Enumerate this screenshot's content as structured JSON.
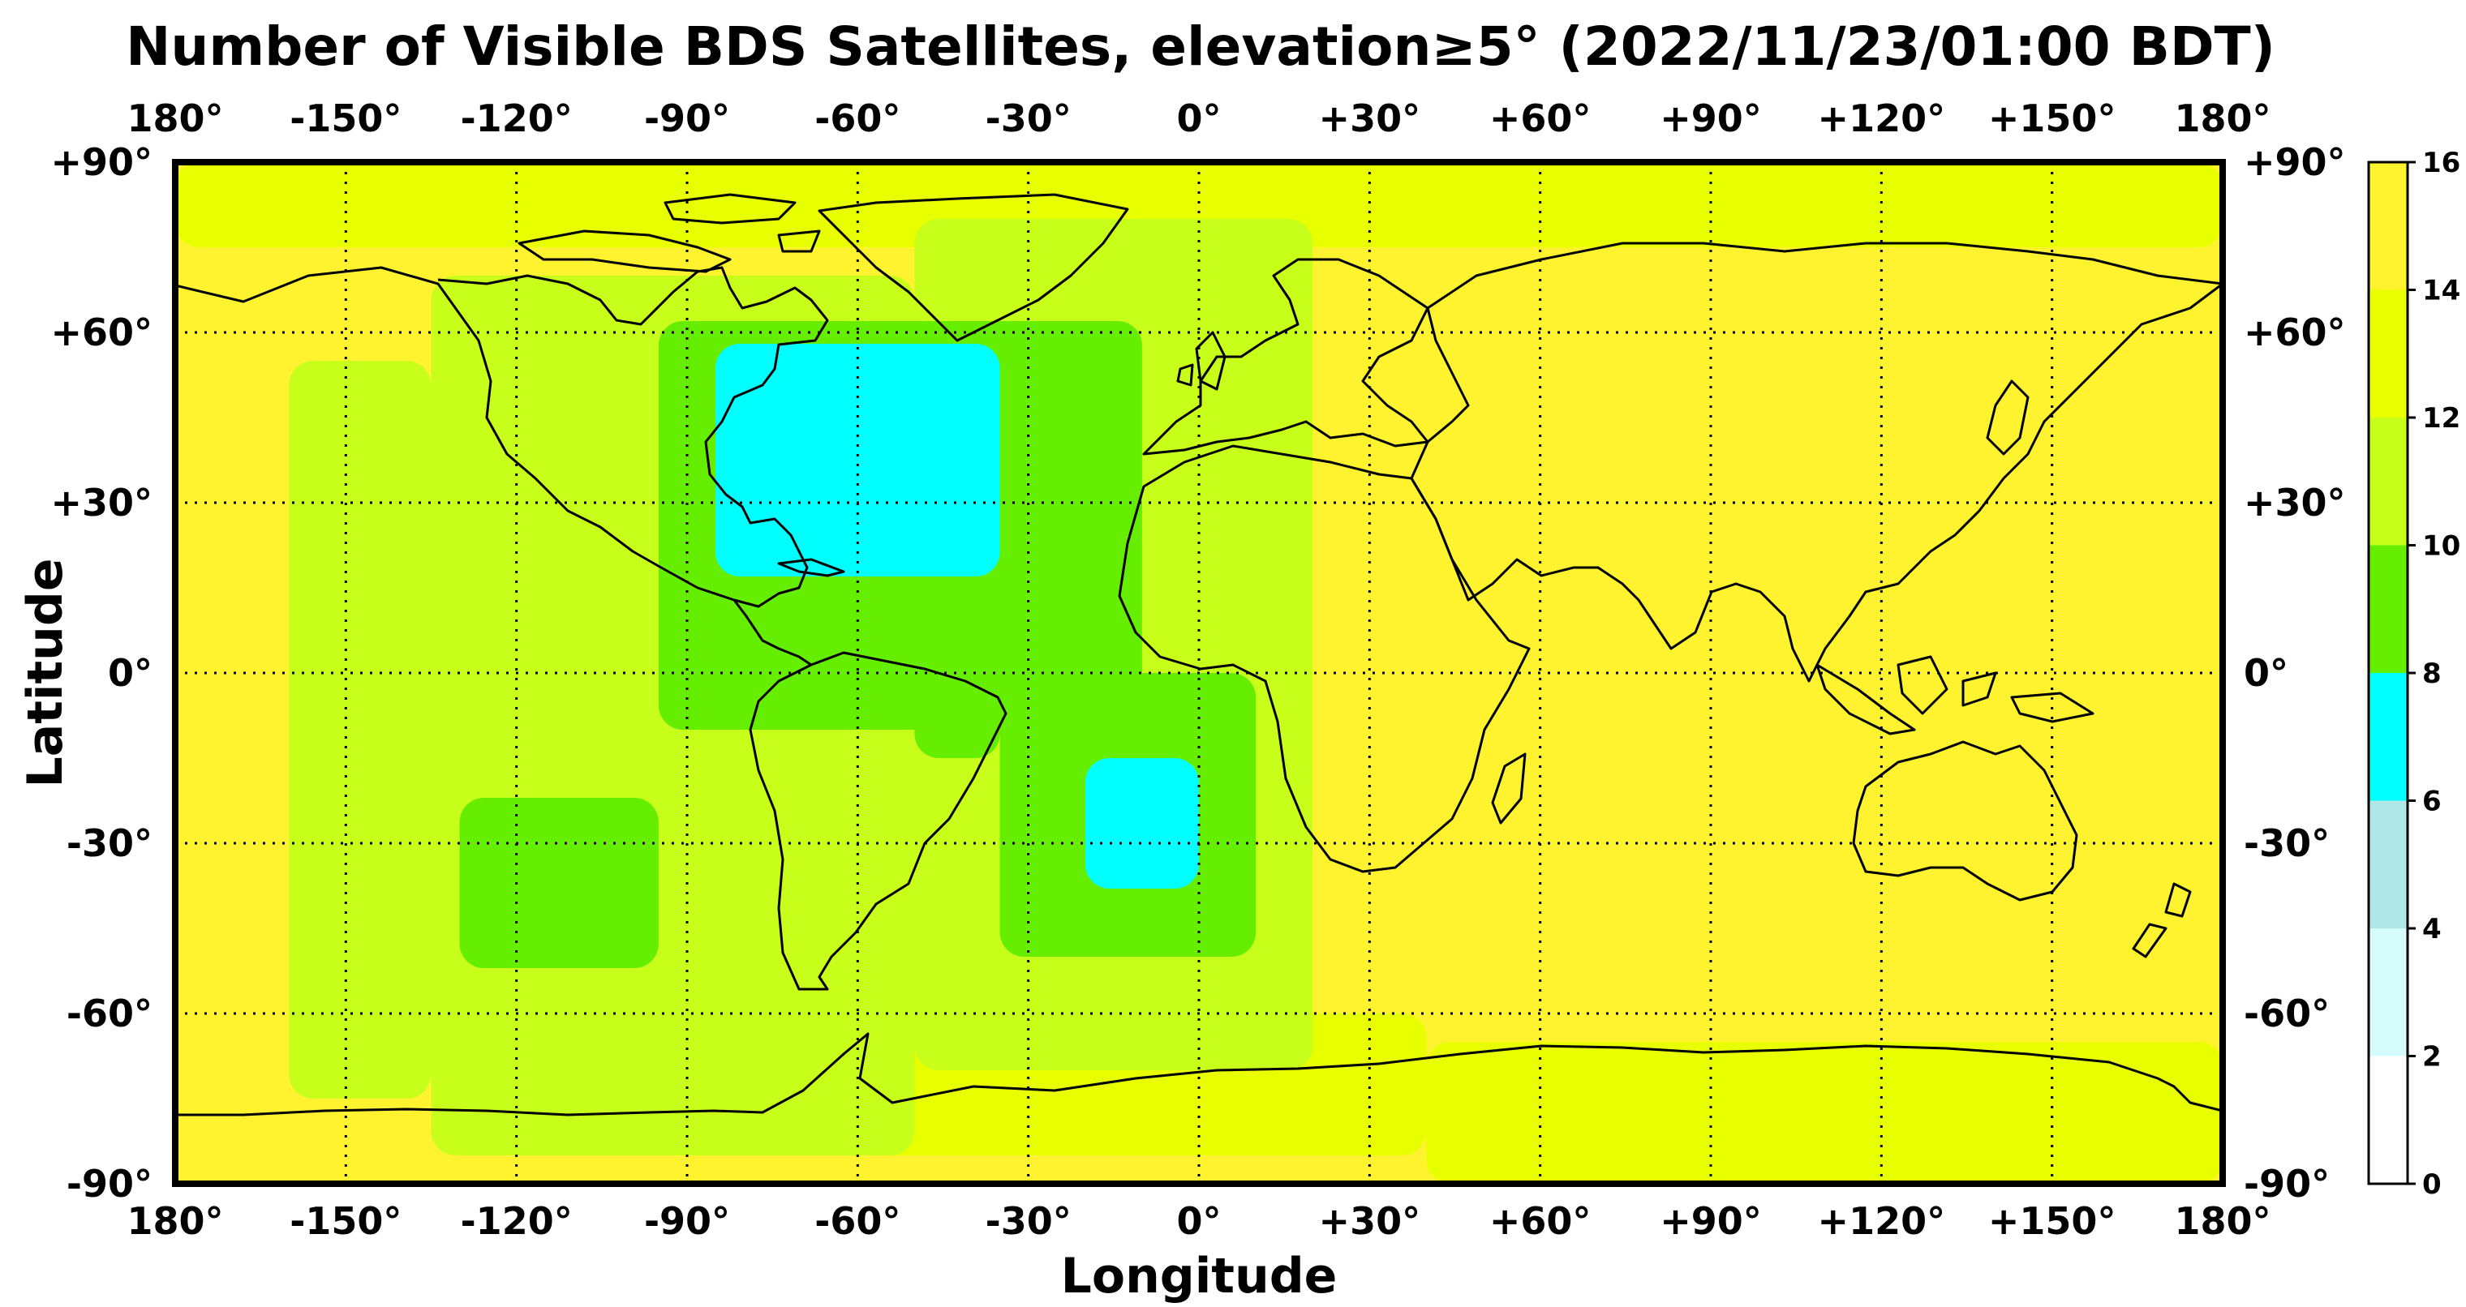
{
  "chart_data": {
    "type": "heatmap",
    "title": "Number of Visible BDS Satellites, elevation≥5° (2022/11/23/01:00 BDT)",
    "xlabel": "Longitude",
    "ylabel": "Latitude",
    "xlim": [
      -180,
      180
    ],
    "ylim": [
      -90,
      90
    ],
    "x_ticks": [
      -180,
      -150,
      -120,
      -90,
      -60,
      -30,
      0,
      30,
      60,
      90,
      120,
      150,
      180
    ],
    "x_tick_labels": [
      "180°",
      "-150°",
      "-120°",
      "-90°",
      "-60°",
      "-30°",
      "0°",
      "+30°",
      "+60°",
      "+90°",
      "+120°",
      "+150°",
      "180°"
    ],
    "y_ticks": [
      90,
      60,
      30,
      0,
      -30,
      -60,
      -90
    ],
    "y_tick_labels": [
      "+90°",
      "+60°",
      "+30°",
      "0°",
      "-30°",
      "-60°",
      "-90°"
    ],
    "grid": true,
    "colorbar": {
      "ticks": [
        0,
        2,
        4,
        6,
        8,
        10,
        12,
        14,
        16
      ],
      "tick_labels": [
        "0",
        "2",
        "4",
        "6",
        "8",
        "10",
        "12",
        "14",
        "16"
      ],
      "bins": [
        {
          "range": [
            0,
            2
          ],
          "color": "#ffffff"
        },
        {
          "range": [
            2,
            4
          ],
          "color": "#d6fcfc"
        },
        {
          "range": [
            4,
            6
          ],
          "color": "#afe6e6"
        },
        {
          "range": [
            6,
            8
          ],
          "color": "#00ffff"
        },
        {
          "range": [
            8,
            10
          ],
          "color": "#66ee00"
        },
        {
          "range": [
            10,
            12
          ],
          "color": "#c8ff1a"
        },
        {
          "range": [
            12,
            14
          ],
          "color": "#e8ff00"
        },
        {
          "range": [
            14,
            16
          ],
          "color": "#fff22e"
        }
      ]
    },
    "regions": [
      {
        "id": "high-latitudes-north",
        "lon": [
          -180,
          180
        ],
        "lat": [
          75,
          90
        ],
        "bin": [
          12,
          14
        ]
      },
      {
        "id": "east-pacific-band",
        "lon": [
          -135,
          -50
        ],
        "lat": [
          -85,
          70
        ],
        "bin": [
          10,
          12
        ]
      },
      {
        "id": "central-pacific-patch",
        "lon": [
          -160,
          -135
        ],
        "lat": [
          -75,
          55
        ],
        "bin": [
          10,
          12
        ]
      },
      {
        "id": "south-america-west",
        "lon": [
          -80,
          -60
        ],
        "lat": [
          -60,
          10
        ],
        "bin": [
          10,
          12
        ]
      },
      {
        "id": "atlantic-band",
        "lon": [
          -50,
          20
        ],
        "lat": [
          -70,
          80
        ],
        "bin": [
          10,
          12
        ]
      },
      {
        "id": "west-africa",
        "lon": [
          -20,
          20
        ],
        "lat": [
          0,
          35
        ],
        "bin": [
          10,
          12
        ]
      },
      {
        "id": "southern-ocean-atlantic",
        "lon": [
          -60,
          40
        ],
        "lat": [
          -85,
          -60
        ],
        "bin": [
          12,
          14
        ]
      },
      {
        "id": "antarctic-coast-east",
        "lon": [
          40,
          180
        ],
        "lat": [
          -90,
          -65
        ],
        "bin": [
          12,
          14
        ]
      },
      {
        "id": "north-atlantic-8-10",
        "lon": [
          -95,
          -10
        ],
        "lat": [
          -10,
          62
        ],
        "bin": [
          8,
          10
        ]
      },
      {
        "id": "south-pacific-8-10",
        "lon": [
          -130,
          -95
        ],
        "lat": [
          -52,
          -22
        ],
        "bin": [
          8,
          10
        ]
      },
      {
        "id": "south-atlantic-8-10",
        "lon": [
          -35,
          10
        ],
        "lat": [
          -50,
          0
        ],
        "bin": [
          8,
          10
        ]
      },
      {
        "id": "brazil-patch-8-10",
        "lon": [
          -50,
          -35
        ],
        "lat": [
          -15,
          -5
        ],
        "bin": [
          8,
          10
        ]
      },
      {
        "id": "north-atlantic-6-8",
        "lon": [
          -85,
          -35
        ],
        "lat": [
          17,
          58
        ],
        "bin": [
          6,
          8
        ]
      },
      {
        "id": "south-atlantic-6-8",
        "lon": [
          -20,
          0
        ],
        "lat": [
          -38,
          -15
        ],
        "bin": [
          6,
          8
        ]
      },
      {
        "id": "background-east",
        "lon": [
          20,
          180
        ],
        "lat": [
          -65,
          75
        ],
        "bin": [
          14,
          16
        ]
      },
      {
        "id": "background-west",
        "lon": [
          -180,
          -160
        ],
        "lat": [
          -65,
          75
        ],
        "bin": [
          14,
          16
        ]
      }
    ]
  }
}
